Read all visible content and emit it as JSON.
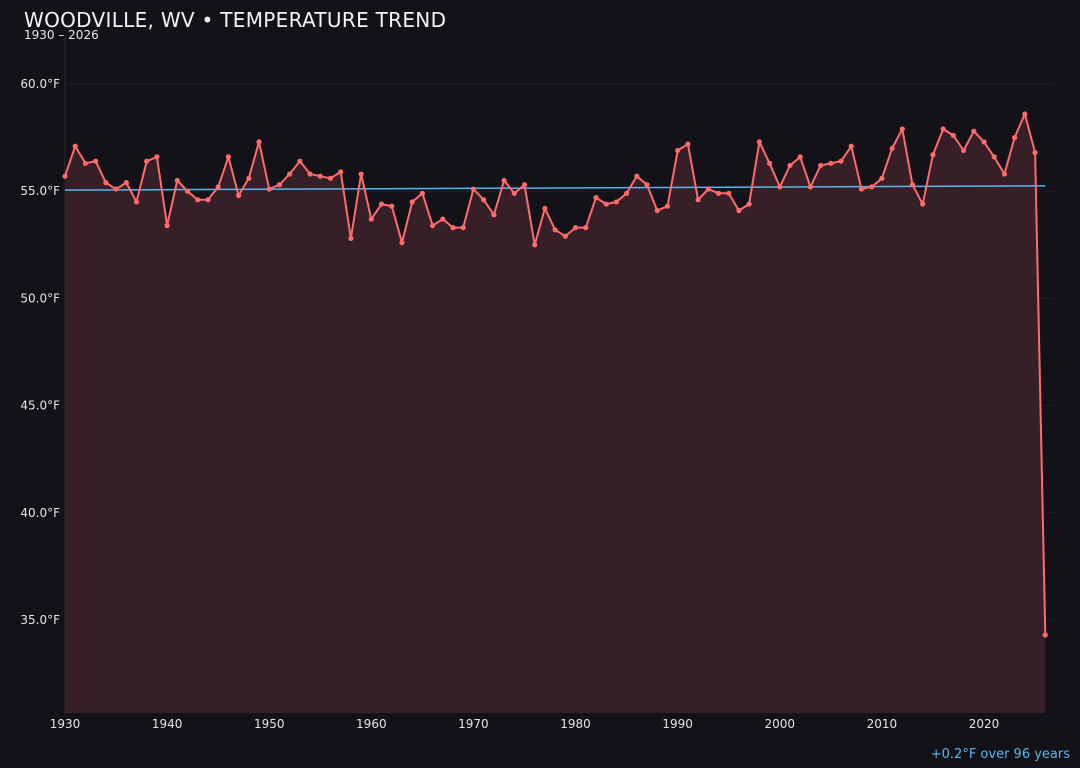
{
  "header": {
    "title": "WOODVILLE, WV • TEMPERATURE TREND",
    "subtitle": "1930 – 2026"
  },
  "footer": {
    "trend_note": "+0.2°F over 96 years"
  },
  "colors": {
    "background": "#131218",
    "series": "#ff6b6b",
    "fill": "#361f26",
    "trend": "#5ab4ee",
    "grid": "#221e25"
  },
  "chart_data": {
    "type": "area",
    "title": "WOODVILLE, WV • TEMPERATURE TREND",
    "xlabel": "",
    "ylabel": "",
    "xlim": [
      1930,
      2027
    ],
    "ylim": [
      30.7,
      62.1
    ],
    "grid": true,
    "x_ticks": [
      1930,
      1940,
      1950,
      1960,
      1970,
      1980,
      1990,
      2000,
      2010,
      2020
    ],
    "x_tick_labels": [
      "1930",
      "1940",
      "1950",
      "1960",
      "1970",
      "1980",
      "1990",
      "2000",
      "2010",
      "2020"
    ],
    "y_ticks": [
      35,
      40,
      45,
      50,
      55,
      60
    ],
    "y_tick_labels": [
      "35.0°F",
      "40.0°F",
      "45.0°F",
      "50.0°F",
      "55.0°F",
      "60.0°F"
    ],
    "x": [
      1930,
      1931,
      1932,
      1933,
      1934,
      1935,
      1936,
      1937,
      1938,
      1939,
      1940,
      1941,
      1942,
      1943,
      1944,
      1945,
      1946,
      1947,
      1948,
      1949,
      1950,
      1951,
      1952,
      1953,
      1954,
      1955,
      1956,
      1957,
      1958,
      1959,
      1960,
      1961,
      1962,
      1963,
      1964,
      1965,
      1966,
      1967,
      1968,
      1969,
      1970,
      1971,
      1972,
      1973,
      1974,
      1975,
      1976,
      1977,
      1978,
      1979,
      1980,
      1981,
      1982,
      1983,
      1984,
      1985,
      1986,
      1987,
      1988,
      1989,
      1990,
      1991,
      1992,
      1993,
      1994,
      1995,
      1996,
      1997,
      1998,
      1999,
      2000,
      2001,
      2002,
      2003,
      2004,
      2005,
      2006,
      2007,
      2008,
      2009,
      2010,
      2011,
      2012,
      2013,
      2014,
      2015,
      2016,
      2017,
      2018,
      2019,
      2020,
      2021,
      2022,
      2023,
      2024,
      2025,
      2026
    ],
    "values": [
      55.7,
      57.1,
      56.3,
      56.4,
      55.4,
      55.1,
      55.4,
      54.5,
      56.4,
      56.6,
      53.4,
      55.5,
      55.0,
      54.6,
      54.6,
      55.2,
      56.6,
      54.8,
      55.6,
      57.3,
      55.1,
      55.3,
      55.8,
      56.4,
      55.8,
      55.7,
      55.6,
      55.9,
      52.8,
      55.8,
      53.7,
      54.4,
      54.3,
      52.6,
      54.5,
      54.9,
      53.4,
      53.7,
      53.3,
      53.3,
      55.1,
      54.6,
      53.9,
      55.5,
      54.9,
      55.3,
      52.5,
      54.2,
      53.2,
      52.9,
      53.3,
      53.3,
      54.7,
      54.4,
      54.5,
      54.9,
      55.7,
      55.3,
      54.1,
      54.3,
      56.9,
      57.2,
      54.6,
      55.1,
      54.9,
      54.9,
      54.1,
      54.4,
      57.3,
      56.3,
      55.2,
      56.2,
      56.6,
      55.2,
      56.2,
      56.3,
      56.4,
      57.1,
      55.1,
      55.2,
      55.6,
      57.0,
      57.9,
      55.3,
      54.4,
      56.7,
      57.9,
      57.6,
      56.9,
      57.8,
      57.3,
      56.6,
      55.8,
      57.5,
      58.6,
      56.8,
      34.3
    ],
    "trend": {
      "x": [
        1930,
        2026
      ],
      "y": [
        55.05,
        55.25
      ]
    }
  }
}
